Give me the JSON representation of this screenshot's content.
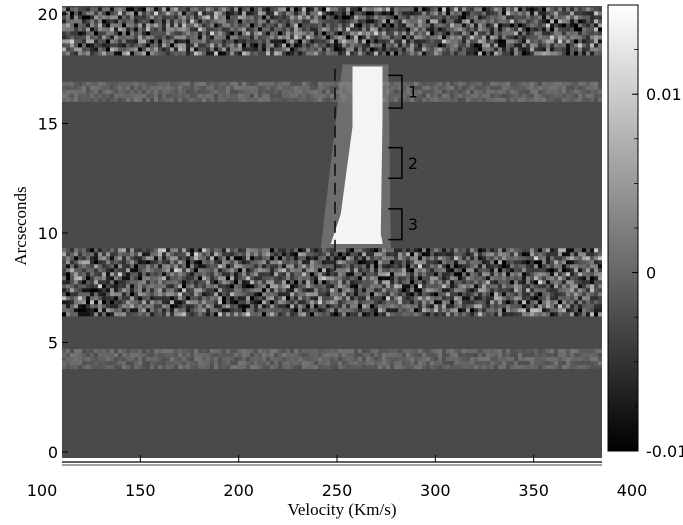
{
  "chart_data": {
    "type": "heatmap",
    "title": "",
    "xlabel": "Velocity (Km/s)",
    "ylabel": "Arcseconds",
    "xlim": [
      100,
      400
    ],
    "ylim": [
      0,
      20
    ],
    "x_ticks": [
      100,
      150,
      200,
      250,
      300,
      350,
      400
    ],
    "y_ticks": [
      0,
      5,
      10,
      15,
      20
    ],
    "colorbar": {
      "range": [
        -0.01,
        0.015
      ],
      "tick_labels": [
        "0.01",
        "0",
        "-0.01"
      ],
      "tick_values": [
        0.01,
        0,
        -0.01
      ],
      "colormap": "gray"
    },
    "features": {
      "dashed_line_velocity": 250,
      "emission_ridge": {
        "velocity_start": 253,
        "velocity_end": 273,
        "arcsec_start": 9.5,
        "arcsec_end": 17.6,
        "level": "saturated"
      },
      "noise_bands_arcsec": [
        [
          18.2,
          20.3
        ],
        [
          6.3,
          9.3
        ]
      ],
      "faint_bands_arcsec": [
        [
          16.1,
          16.9
        ],
        [
          3.9,
          4.7
        ]
      ],
      "regions": [
        {
          "label": "1",
          "arcsec_range": [
            15.7,
            17.2
          ]
        },
        {
          "label": "2",
          "arcsec_range": [
            12.5,
            13.9
          ]
        },
        {
          "label": "3",
          "arcsec_range": [
            9.7,
            11.1
          ]
        }
      ]
    }
  }
}
